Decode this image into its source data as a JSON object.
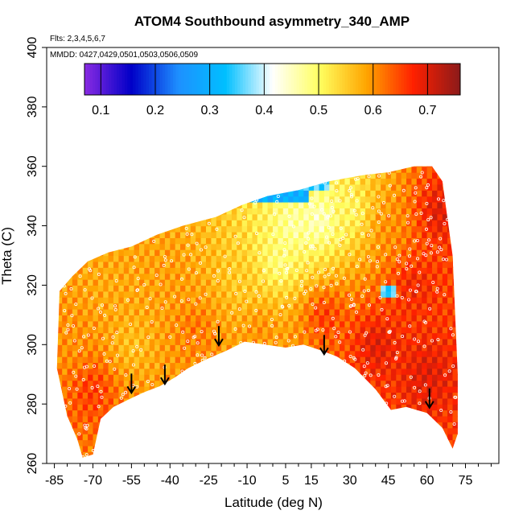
{
  "chart_data": {
    "type": "heatmap",
    "title": "ATOM4 Southbound asymmetry_340_AMP",
    "flights_note": "Flts: 2,3,4,5,6,7",
    "dates_note": "MMDD: 0427,0429,0501,0503,0506,0509",
    "xlabel": "Latitude (deg N)",
    "ylabel": "Theta (C)",
    "xlim": [
      -88,
      88
    ],
    "ylim": [
      260,
      400
    ],
    "x_ticks": [
      -85,
      -70,
      -55,
      -40,
      -25,
      -10,
      5,
      15,
      30,
      45,
      60,
      75
    ],
    "y_ticks": [
      260,
      280,
      300,
      320,
      340,
      360,
      380,
      400
    ],
    "colorbar": {
      "range": [
        0.07,
        0.76
      ],
      "ticks": [
        0.1,
        0.2,
        0.3,
        0.4,
        0.5,
        0.6,
        0.7
      ],
      "colors": [
        "#8a2be2",
        "#0000c8",
        "#1e90ff",
        "#00bfff",
        "#ffffff",
        "#ffff60",
        "#ffa500",
        "#ff2000",
        "#8b1a1a"
      ]
    },
    "upper_boundary": [
      [
        -83,
        318
      ],
      [
        -78,
        323
      ],
      [
        -72,
        328
      ],
      [
        -64,
        331
      ],
      [
        -55,
        333
      ],
      [
        -45,
        337
      ],
      [
        -35,
        340
      ],
      [
        -22,
        343
      ],
      [
        -12,
        347
      ],
      [
        -2,
        350
      ],
      [
        10,
        352
      ],
      [
        22,
        355
      ],
      [
        35,
        357
      ],
      [
        45,
        358
      ],
      [
        55,
        360
      ],
      [
        62,
        360
      ],
      [
        66,
        355
      ],
      [
        70,
        330
      ],
      [
        72,
        290
      ]
    ],
    "lower_boundary": [
      [
        72,
        270
      ],
      [
        70,
        265
      ],
      [
        66,
        272
      ],
      [
        60,
        277
      ],
      [
        52,
        279
      ],
      [
        46,
        278
      ],
      [
        40,
        285
      ],
      [
        32,
        292
      ],
      [
        25,
        296
      ],
      [
        19,
        298
      ],
      [
        12,
        300
      ],
      [
        5,
        299
      ],
      [
        -3,
        300
      ],
      [
        -11,
        301
      ],
      [
        -18,
        298
      ],
      [
        -26,
        295
      ],
      [
        -33,
        292
      ],
      [
        -38,
        289
      ],
      [
        -44,
        286
      ],
      [
        -50,
        284
      ],
      [
        -55,
        282
      ],
      [
        -62,
        279
      ],
      [
        -67,
        275
      ],
      [
        -70,
        263
      ],
      [
        -74,
        262
      ],
      [
        -76,
        268
      ],
      [
        -80,
        276
      ],
      [
        -84,
        292
      ]
    ],
    "field_anchors": [
      {
        "lat": -80,
        "theta": 300,
        "value": 0.6
      },
      {
        "lat": -65,
        "theta": 320,
        "value": 0.58
      },
      {
        "lat": -55,
        "theta": 300,
        "value": 0.56
      },
      {
        "lat": -40,
        "theta": 325,
        "value": 0.59
      },
      {
        "lat": -30,
        "theta": 305,
        "value": 0.62
      },
      {
        "lat": -12,
        "theta": 322,
        "value": 0.55
      },
      {
        "lat": 2,
        "theta": 328,
        "value": 0.48
      },
      {
        "lat": 8,
        "theta": 340,
        "value": 0.46
      },
      {
        "lat": 18,
        "theta": 342,
        "value": 0.44
      },
      {
        "lat": 30,
        "theta": 345,
        "value": 0.5
      },
      {
        "lat": 20,
        "theta": 310,
        "value": 0.66
      },
      {
        "lat": 40,
        "theta": 300,
        "value": 0.7
      },
      {
        "lat": 55,
        "theta": 320,
        "value": 0.68
      },
      {
        "lat": 60,
        "theta": 290,
        "value": 0.7
      },
      {
        "lat": 65,
        "theta": 345,
        "value": 0.7
      },
      {
        "lat": 45,
        "theta": 340,
        "value": 0.6
      },
      {
        "lat": -70,
        "theta": 285,
        "value": 0.66
      },
      {
        "lat": -5,
        "theta": 305,
        "value": 0.6
      }
    ],
    "features": [
      {
        "name": "blue-strip",
        "lat_range": [
          -12,
          14
        ],
        "theta_range": [
          349,
          353
        ],
        "value": 0.3
      },
      {
        "name": "light-blue-strip",
        "lat_range": [
          -8,
          22
        ],
        "theta_range": [
          352,
          356
        ],
        "value": 0.35
      },
      {
        "name": "pale-patch",
        "lat_range": [
          42,
          47
        ],
        "theta_range": [
          316,
          319
        ],
        "value": 0.35
      }
    ],
    "tropopause_arrows": [
      {
        "lat": -55,
        "theta": 287
      },
      {
        "lat": -42,
        "theta": 290
      },
      {
        "lat": -21,
        "theta": 303
      },
      {
        "lat": 20,
        "theta": 300
      },
      {
        "lat": 61,
        "theta": 282
      }
    ]
  }
}
